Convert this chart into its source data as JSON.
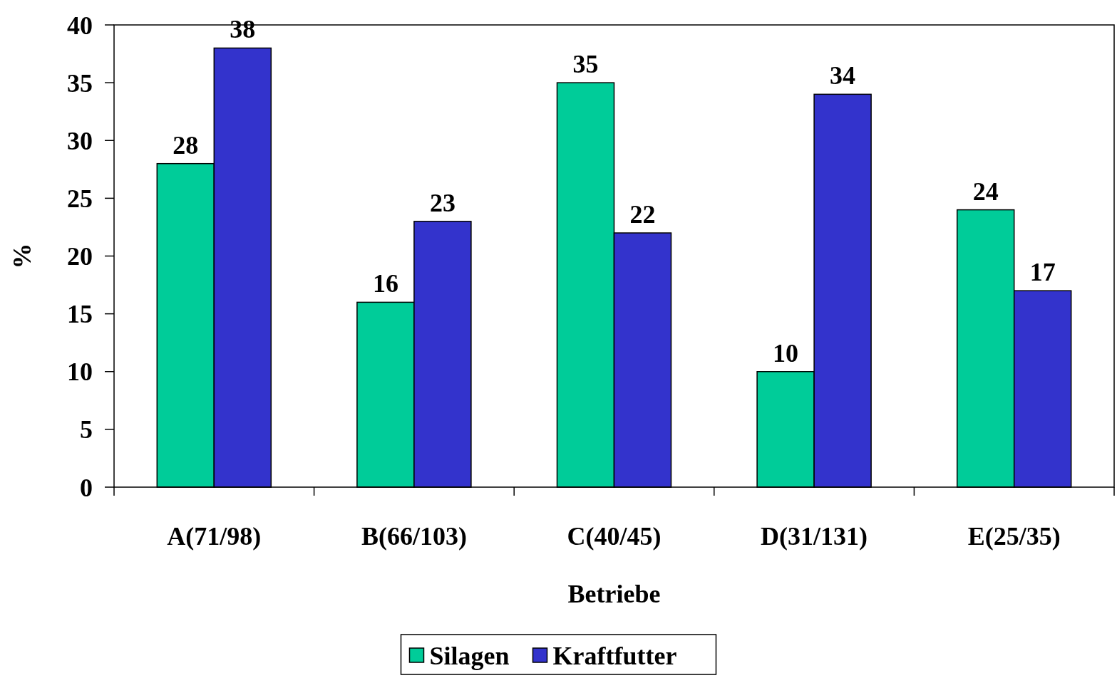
{
  "chart_data": {
    "type": "bar",
    "xlabel": "Betriebe",
    "ylabel": "%",
    "categories": [
      "A(71/98)",
      "B(66/103)",
      "C(40/45)",
      "D(31/131)",
      "E(25/35)"
    ],
    "series": [
      {
        "name": "Silagen",
        "color": "#00cc99",
        "values": [
          28,
          16,
          35,
          10,
          24
        ]
      },
      {
        "name": "Kraftfutter",
        "color": "#3333cc",
        "values": [
          38,
          23,
          22,
          34,
          17
        ]
      }
    ],
    "ylim": [
      0,
      40
    ],
    "yticks": [
      0,
      5,
      10,
      15,
      20,
      25,
      30,
      35,
      40
    ],
    "data_labels": true,
    "legend": "bottom",
    "grid": false
  }
}
